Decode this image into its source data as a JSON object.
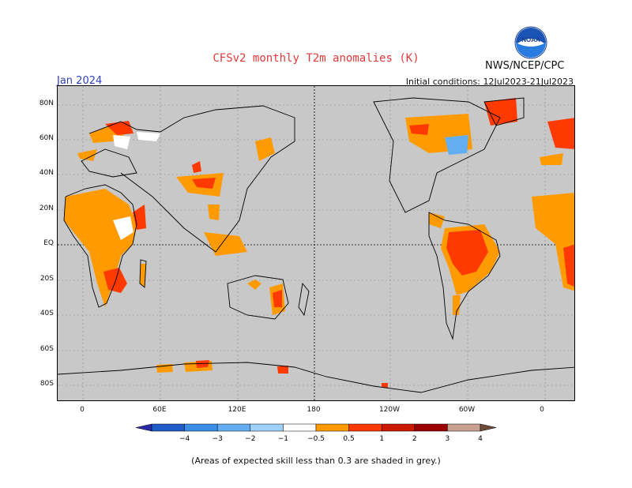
{
  "title": "CFSv2 monthly T2m anomalies (K)",
  "agency": "NWS/NCEP/CPC",
  "logo_text": "NOAA",
  "month": "Jan 2024",
  "initial_conditions": "Initial conditions: 12Jul2023-21Jul2023",
  "lat_labels": [
    "80N",
    "60N",
    "40N",
    "20N",
    "EQ",
    "20S",
    "40S",
    "60S",
    "80S"
  ],
  "lon_labels": [
    "0",
    "60E",
    "120E",
    "180",
    "120W",
    "60W",
    "0"
  ],
  "colorbar": {
    "labels": [
      "−4",
      "−3",
      "−2",
      "−1",
      "−0.5",
      "0.5",
      "1",
      "2",
      "3",
      "4"
    ],
    "colors": [
      "#2a2aa8",
      "#1f5cc8",
      "#3a8ee6",
      "#63aef0",
      "#9fd0f8",
      "#ffffff",
      "#ff9b00",
      "#ff3a00",
      "#cc1a00",
      "#9a0000",
      "#c8a090",
      "#6e4a3c"
    ]
  },
  "footnote": "(Areas of expected skill less than 0.3 are shaded in grey.)",
  "colors": {
    "skill_mask": "#c8c8c8",
    "anom_0_5_1": "#ff9b00",
    "anom_1_2": "#ff3a00",
    "anom_2_3": "#cc1a00",
    "anom_neg": "#63aef0",
    "title": "#e2393a",
    "month": "#2b3fc0"
  }
}
